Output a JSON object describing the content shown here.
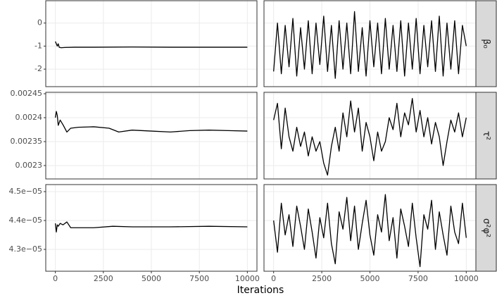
{
  "xlabel": "Iterations",
  "chart_data": [
    {
      "type": "line",
      "color": "#000000",
      "grid": true,
      "x": [
        0,
        100,
        150,
        200,
        300,
        500,
        1000,
        2000,
        4000,
        6000,
        8000,
        10000
      ],
      "values": [
        -0.8,
        -1.0,
        -0.9,
        -1.05,
        -1.07,
        -1.06,
        -1.05,
        -1.05,
        -1.04,
        -1.05,
        -1.05,
        -1.05
      ],
      "xlim": [
        -500,
        10500
      ],
      "xticks": [
        0,
        2500,
        5000,
        7500,
        10000
      ],
      "ylim": [
        -2.76,
        0.97
      ],
      "yticks": [
        -2,
        -1,
        0
      ]
    },
    {
      "type": "line",
      "color": "#000000",
      "grid": true,
      "strip": "β₀",
      "x": [
        0,
        200,
        400,
        600,
        800,
        1000,
        1200,
        1400,
        1600,
        1800,
        2000,
        2200,
        2400,
        2600,
        2800,
        3000,
        3200,
        3400,
        3600,
        3800,
        4000,
        4200,
        4400,
        4600,
        4800,
        5000,
        5200,
        5400,
        5600,
        5800,
        6000,
        6200,
        6400,
        6600,
        6800,
        7000,
        7200,
        7400,
        7600,
        7800,
        8000,
        8200,
        8400,
        8600,
        8800,
        9000,
        9200,
        9400,
        9600,
        9800,
        10000
      ],
      "values": [
        -2.1,
        0.0,
        -2.2,
        -0.1,
        -1.9,
        0.2,
        -2.3,
        -0.2,
        -2.0,
        0.1,
        -2.2,
        0.0,
        -1.8,
        0.3,
        -2.1,
        -0.1,
        -2.4,
        0.1,
        -2.0,
        0.0,
        -2.2,
        0.5,
        -2.1,
        -0.2,
        -2.3,
        0.1,
        -1.9,
        0.0,
        -2.2,
        0.2,
        -2.0,
        -0.1,
        -2.1,
        0.1,
        -2.3,
        0.0,
        -2.0,
        0.2,
        -2.2,
        -0.1,
        -1.9,
        0.1,
        -2.1,
        0.3,
        -2.3,
        0.0,
        -2.0,
        0.1,
        -2.2,
        -0.1,
        -1.0
      ],
      "xlim": [
        -500,
        10500
      ],
      "xticks": [
        0,
        2500,
        5000,
        7500,
        10000
      ],
      "ylim": [
        -2.76,
        0.97
      ],
      "yticks": [
        -2,
        -1,
        0
      ]
    },
    {
      "type": "line",
      "color": "#000000",
      "grid": true,
      "x": [
        0,
        50,
        100,
        150,
        250,
        400,
        600,
        800,
        1200,
        2000,
        2800,
        3300,
        4000,
        5000,
        6000,
        7000,
        8000,
        9000,
        10000
      ],
      "values": [
        0.0024,
        0.002413,
        0.002405,
        0.002384,
        0.002395,
        0.002385,
        0.00237,
        0.002378,
        0.00238,
        0.002381,
        0.002378,
        0.00237,
        0.002374,
        0.002372,
        0.00237,
        0.002373,
        0.002374,
        0.002373,
        0.002372
      ],
      "xlim": [
        -500,
        10500
      ],
      "xticks": [
        0,
        2500,
        5000,
        7500,
        10000
      ],
      "ylim": [
        0.002272,
        0.002453
      ],
      "yticks": [
        0.0023,
        0.00235,
        0.0024,
        0.00245
      ]
    },
    {
      "type": "line",
      "color": "#000000",
      "grid": true,
      "strip": "τ²",
      "x": [
        0,
        200,
        400,
        600,
        800,
        1000,
        1200,
        1400,
        1600,
        1800,
        2000,
        2200,
        2400,
        2600,
        2800,
        3000,
        3200,
        3400,
        3600,
        3800,
        4000,
        4200,
        4400,
        4600,
        4800,
        5000,
        5200,
        5400,
        5600,
        5800,
        6000,
        6200,
        6400,
        6600,
        6800,
        7000,
        7200,
        7400,
        7600,
        7800,
        8000,
        8200,
        8400,
        8600,
        8800,
        9000,
        9200,
        9400,
        9600,
        9800,
        10000
      ],
      "values": [
        0.002395,
        0.00243,
        0.002335,
        0.00242,
        0.00236,
        0.00233,
        0.00238,
        0.00234,
        0.00237,
        0.00232,
        0.00236,
        0.00233,
        0.00235,
        0.002305,
        0.00228,
        0.00234,
        0.00238,
        0.00233,
        0.00241,
        0.00236,
        0.002435,
        0.00237,
        0.00242,
        0.00233,
        0.00239,
        0.00236,
        0.00231,
        0.00237,
        0.00233,
        0.00235,
        0.0024,
        0.002375,
        0.00243,
        0.00236,
        0.00241,
        0.002385,
        0.00244,
        0.00237,
        0.002415,
        0.00236,
        0.0024,
        0.002345,
        0.00239,
        0.00236,
        0.0023,
        0.00235,
        0.002395,
        0.00237,
        0.00241,
        0.00236,
        0.0024
      ],
      "xlim": [
        -500,
        10500
      ],
      "xticks": [
        0,
        2500,
        5000,
        7500,
        10000
      ],
      "ylim": [
        0.002272,
        0.002453
      ],
      "yticks": [
        0.0023,
        0.00235,
        0.0024,
        0.00245
      ]
    },
    {
      "type": "line",
      "color": "#000000",
      "grid": true,
      "x": [
        0,
        50,
        100,
        150,
        250,
        400,
        600,
        800,
        1200,
        2000,
        3000,
        4000,
        6000,
        8000,
        10000
      ],
      "values": [
        4.39e-05,
        4.36e-05,
        4.385e-05,
        4.38e-05,
        4.39e-05,
        4.385e-05,
        4.395e-05,
        4.375e-05,
        4.375e-05,
        4.375e-05,
        4.38e-05,
        4.378e-05,
        4.378e-05,
        4.38e-05,
        4.378e-05
      ],
      "xlim": [
        -500,
        10500
      ],
      "xticks": [
        0,
        2500,
        5000,
        7500,
        10000
      ],
      "ylim": [
        4.2244e-05,
        4.5244e-05
      ],
      "yticks": [
        {
          "value": 4.3e-05,
          "label": "4.3e−05"
        },
        {
          "value": 4.4e-05,
          "label": "4.4e−05"
        },
        {
          "value": 4.5e-05,
          "label": "4.5e−05"
        }
      ]
    },
    {
      "type": "line",
      "color": "#000000",
      "grid": true,
      "strip": "σ²φ²",
      "x": [
        0,
        200,
        400,
        600,
        800,
        1000,
        1200,
        1400,
        1600,
        1800,
        2000,
        2200,
        2400,
        2600,
        2800,
        3000,
        3200,
        3400,
        3600,
        3800,
        4000,
        4200,
        4400,
        4600,
        4800,
        5000,
        5200,
        5400,
        5600,
        5800,
        6000,
        6200,
        6400,
        6600,
        6800,
        7000,
        7200,
        7400,
        7600,
        7800,
        8000,
        8200,
        8400,
        8600,
        8800,
        9000,
        9200,
        9400,
        9600,
        9800,
        10000
      ],
      "values": [
        4.4e-05,
        4.29e-05,
        4.46e-05,
        4.35e-05,
        4.42e-05,
        4.31e-05,
        4.45e-05,
        4.38e-05,
        4.3e-05,
        4.44e-05,
        4.36e-05,
        4.27e-05,
        4.41e-05,
        4.34e-05,
        4.46e-05,
        4.32e-05,
        4.25e-05,
        4.43e-05,
        4.37e-05,
        4.48e-05,
        4.33e-05,
        4.45e-05,
        4.3e-05,
        4.39e-05,
        4.47e-05,
        4.35e-05,
        4.28e-05,
        4.42e-05,
        4.36e-05,
        4.49e-05,
        4.33e-05,
        4.41e-05,
        4.27e-05,
        4.44e-05,
        4.38e-05,
        4.31e-05,
        4.46e-05,
        4.34e-05,
        4.24e-05,
        4.42e-05,
        4.37e-05,
        4.47e-05,
        4.3e-05,
        4.43e-05,
        4.35e-05,
        4.28e-05,
        4.45e-05,
        4.36e-05,
        4.32e-05,
        4.46e-05,
        4.34e-05
      ],
      "xlim": [
        -500,
        10500
      ],
      "xticks": [
        0,
        2500,
        5000,
        7500,
        10000
      ],
      "ylim": [
        4.2244e-05,
        4.5244e-05
      ],
      "yticks": [
        {
          "value": 4.3e-05,
          "label": "4.3e−05"
        },
        {
          "value": 4.4e-05,
          "label": "4.4e−05"
        },
        {
          "value": 4.5e-05,
          "label": "4.5e−05"
        }
      ]
    }
  ]
}
